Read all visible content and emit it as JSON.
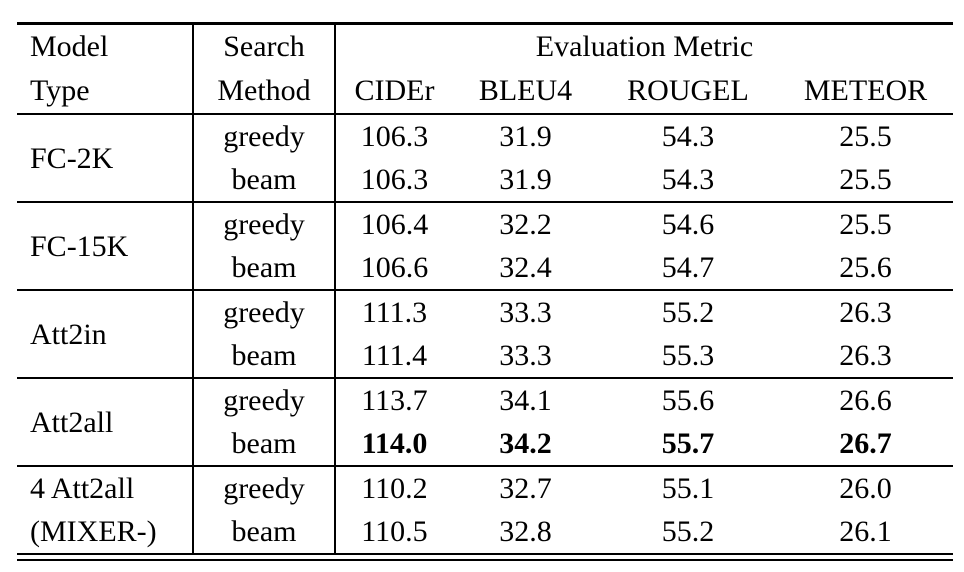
{
  "table": {
    "header": {
      "model_type": "Model\nType",
      "search_method": "Search\nMethod",
      "evaluation_metric": "Evaluation Metric",
      "metrics": [
        "CIDEr",
        "BLEU4",
        "ROUGEL",
        "METEOR"
      ]
    },
    "groups": [
      {
        "model": "FC-2K",
        "rows": [
          {
            "method": "greedy",
            "values": [
              "106.3",
              "31.9",
              "54.3",
              "25.5"
            ]
          },
          {
            "method": "beam",
            "values": [
              "106.3",
              "31.9",
              "54.3",
              "25.5"
            ]
          }
        ]
      },
      {
        "model": "FC-15K",
        "rows": [
          {
            "method": "greedy",
            "values": [
              "106.4",
              "32.2",
              "54.6",
              "25.5"
            ]
          },
          {
            "method": "beam",
            "values": [
              "106.6",
              "32.4",
              "54.7",
              "25.6"
            ]
          }
        ]
      },
      {
        "model": "Att2in",
        "rows": [
          {
            "method": "greedy",
            "values": [
              "111.3",
              "33.3",
              "55.2",
              "26.3"
            ]
          },
          {
            "method": "beam",
            "values": [
              "111.4",
              "33.3",
              "55.3",
              "26.3"
            ]
          }
        ]
      },
      {
        "model": "Att2all",
        "rows": [
          {
            "method": "greedy",
            "values": [
              "113.7",
              "34.1",
              "55.6",
              "26.6"
            ]
          },
          {
            "method": "beam",
            "values": [
              "114.0",
              "34.2",
              "55.7",
              "26.7"
            ],
            "bold": true
          }
        ]
      },
      {
        "model": "4 Att2all\n(MIXER-)",
        "rows": [
          {
            "method": "greedy",
            "values": [
              "110.2",
              "32.7",
              "55.1",
              "26.0"
            ]
          },
          {
            "method": "beam",
            "values": [
              "110.5",
              "32.8",
              "55.2",
              "26.1"
            ]
          }
        ]
      }
    ],
    "colors": {
      "text": "#000000",
      "rule": "#000000",
      "background": "#ffffff"
    }
  }
}
